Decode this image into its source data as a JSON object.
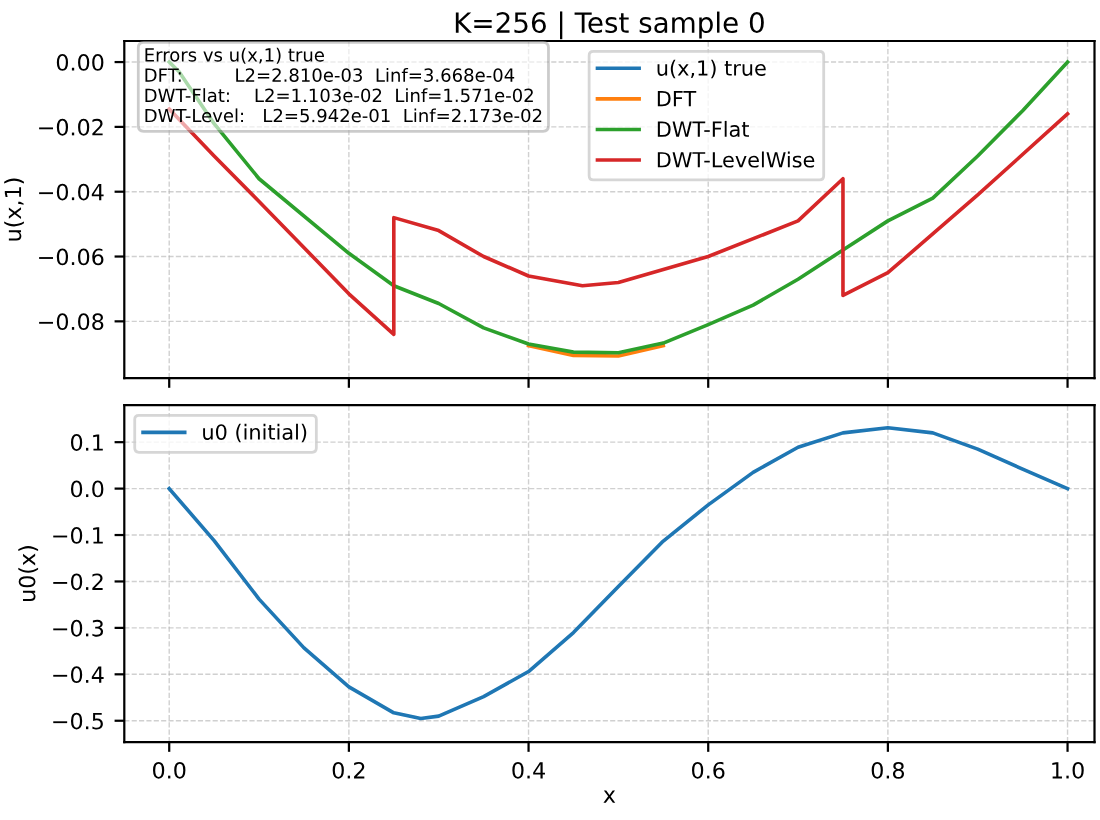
{
  "chart_data": [
    {
      "type": "line",
      "title": "K=256 | Test sample 0",
      "ylabel": "u(x,1)",
      "xlim": [
        -0.05,
        1.03
      ],
      "ylim": [
        -0.0975,
        0.0065
      ],
      "xticks": [
        {
          "value": 0,
          "label": null
        },
        {
          "value": 0.2,
          "label": null
        },
        {
          "value": 0.4,
          "label": null
        },
        {
          "value": 0.6,
          "label": null
        },
        {
          "value": 0.8,
          "label": null
        },
        {
          "value": 1.0,
          "label": null
        }
      ],
      "yticks": [
        {
          "value": 0,
          "label": "0.00"
        },
        {
          "value": -0.02,
          "label": "−0.02"
        },
        {
          "value": -0.04,
          "label": "−0.04"
        },
        {
          "value": -0.06,
          "label": "−0.06"
        },
        {
          "value": -0.08,
          "label": "−0.08"
        }
      ],
      "tick_labels": "y",
      "grid": true,
      "legend": "top",
      "line_style": "solid",
      "marker": "none",
      "annotations": [
        "Errors vs u(x,1) true\nDFT:         L2=2.810e-03  Linf=3.668e-04\nDWT-Flat:    L2=1.103e-02  Linf=1.571e-02\nDWT-Level:   L2=5.942e-01  Linf=2.173e-02"
      ],
      "x": [
        0,
        0.011,
        0.05,
        0.1,
        0.2,
        0.25,
        0.3,
        0.35,
        0.4,
        0.45,
        0.5,
        0.55,
        0.6,
        0.65,
        0.7,
        0.75,
        0.8,
        0.85,
        0.9,
        0.95,
        1.0
      ],
      "series": [
        {
          "name": "u(x,1) true",
          "color": "#1f77b4",
          "values": [
            null,
            null,
            null,
            null,
            null,
            null,
            null,
            null,
            null,
            null,
            null,
            null,
            null,
            null,
            null,
            null,
            null,
            null,
            null,
            null,
            null
          ]
        },
        {
          "name": "DFT",
          "color": "#ff7f0e",
          "values": [
            null,
            null,
            null,
            null,
            null,
            null,
            null,
            null,
            -0.0875,
            -0.0905,
            -0.0907,
            -0.0875,
            null,
            null,
            null,
            null,
            null,
            null,
            null,
            null,
            null
          ]
        },
        {
          "name": "DWT-Flat",
          "color": "#2ca02c",
          "values": [
            0,
            -0.003,
            -0.019,
            -0.036,
            -0.059,
            -0.069,
            -0.0745,
            -0.082,
            -0.087,
            -0.0895,
            -0.0897,
            -0.0867,
            -0.081,
            -0.075,
            -0.067,
            -0.058,
            -0.049,
            -0.042,
            -0.029,
            -0.015,
            0
          ]
        },
        {
          "name": "DWT-LevelWise",
          "color": "#d62728",
          "x": [
            0,
            0.05,
            0.1,
            0.2,
            0.25,
            0.25,
            0.3,
            0.35,
            0.4,
            0.46,
            0.5,
            0.6,
            0.7,
            0.75,
            0.75,
            0.8,
            0.9,
            1.0
          ],
          "values": [
            -0.0145,
            -0.029,
            -0.043,
            -0.0715,
            -0.084,
            -0.048,
            -0.052,
            -0.06,
            -0.066,
            -0.069,
            -0.068,
            -0.06,
            -0.049,
            -0.036,
            -0.072,
            -0.065,
            -0.041,
            -0.016
          ]
        }
      ]
    },
    {
      "type": "line",
      "xlabel": "x",
      "ylabel": "u0(x)",
      "xlim": [
        -0.05,
        1.03
      ],
      "ylim": [
        -0.546,
        0.18
      ],
      "xticks": [
        {
          "value": 0,
          "label": "0.0"
        },
        {
          "value": 0.2,
          "label": "0.2"
        },
        {
          "value": 0.4,
          "label": "0.4"
        },
        {
          "value": 0.6,
          "label": "0.6"
        },
        {
          "value": 0.8,
          "label": "0.8"
        },
        {
          "value": 1.0,
          "label": "1.0"
        }
      ],
      "yticks": [
        {
          "value": 0.1,
          "label": "0.1"
        },
        {
          "value": 0,
          "label": "0.0"
        },
        {
          "value": -0.1,
          "label": "−0.1"
        },
        {
          "value": -0.2,
          "label": "−0.2"
        },
        {
          "value": -0.3,
          "label": "−0.3"
        },
        {
          "value": -0.4,
          "label": "−0.4"
        },
        {
          "value": -0.5,
          "label": "−0.5"
        }
      ],
      "grid": true,
      "legend": "top left",
      "line_style": "solid",
      "marker": "none",
      "x": [
        0,
        0.05,
        0.1,
        0.15,
        0.2,
        0.25,
        0.28,
        0.3,
        0.35,
        0.4,
        0.45,
        0.5,
        0.55,
        0.6,
        0.65,
        0.7,
        0.75,
        0.8,
        0.85,
        0.9,
        0.95,
        1.0
      ],
      "series": [
        {
          "name": "u0 (initial)",
          "color": "#1f77b4",
          "values": [
            0,
            -0.112,
            -0.238,
            -0.343,
            -0.427,
            -0.483,
            -0.495,
            -0.49,
            -0.448,
            -0.394,
            -0.31,
            -0.211,
            -0.113,
            -0.035,
            0.035,
            0.089,
            0.12,
            0.131,
            0.12,
            0.085,
            0.042,
            0
          ]
        }
      ]
    }
  ]
}
